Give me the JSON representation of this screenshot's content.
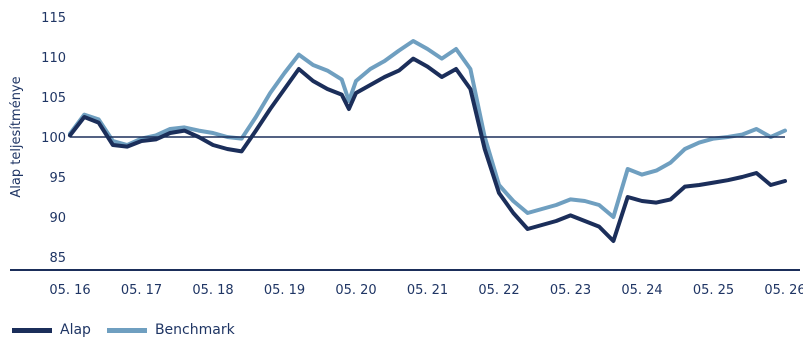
{
  "chart_data": {
    "type": "line",
    "ylabel": "Alap teljesítménye",
    "ylim": [
      83,
      116
    ],
    "yticks": [
      85,
      90,
      95,
      100,
      105,
      110,
      115
    ],
    "xticks": [
      "05. 16",
      "05. 17",
      "05. 18",
      "05. 19",
      "05. 20",
      "05. 21",
      "05. 22",
      "05. 23",
      "05. 24",
      "05. 25",
      "05. 26"
    ],
    "xlim": [
      0,
      10
    ],
    "reference_line": 100,
    "x": [
      0,
      0.2,
      0.4,
      0.6,
      0.8,
      1.0,
      1.2,
      1.4,
      1.6,
      1.8,
      2.0,
      2.2,
      2.4,
      2.6,
      2.8,
      3.0,
      3.2,
      3.4,
      3.6,
      3.8,
      3.9,
      4.0,
      4.2,
      4.4,
      4.6,
      4.8,
      5.0,
      5.2,
      5.4,
      5.6,
      5.8,
      6.0,
      6.2,
      6.4,
      6.6,
      6.8,
      7.0,
      7.2,
      7.4,
      7.6,
      7.8,
      8.0,
      8.2,
      8.4,
      8.6,
      8.8,
      9.0,
      9.2,
      9.4,
      9.6,
      9.8,
      10.0
    ],
    "series": [
      {
        "name": "Alap",
        "color": "#1b2e5a",
        "values": [
          100.2,
          102.5,
          101.8,
          99.0,
          98.8,
          99.5,
          99.7,
          100.5,
          100.8,
          100.0,
          99.0,
          98.5,
          98.2,
          100.8,
          103.5,
          106.0,
          108.5,
          107.0,
          106.0,
          105.3,
          103.5,
          105.5,
          106.5,
          107.5,
          108.3,
          109.8,
          108.8,
          107.5,
          108.5,
          106.0,
          98.5,
          93.0,
          90.5,
          88.5,
          89.0,
          89.5,
          90.2,
          89.5,
          88.8,
          87.0,
          92.5,
          92.0,
          91.8,
          92.2,
          93.8,
          94.0,
          94.3,
          94.6,
          95.0,
          95.5,
          94.0,
          94.5
        ]
      },
      {
        "name": "Benchmark",
        "color": "#6f9fc0",
        "values": [
          100.4,
          102.8,
          102.2,
          99.5,
          99.0,
          99.8,
          100.2,
          101.0,
          101.2,
          100.8,
          100.5,
          100.0,
          99.8,
          102.5,
          105.5,
          108.0,
          110.3,
          109.0,
          108.3,
          107.2,
          104.5,
          107.0,
          108.5,
          109.5,
          110.8,
          112.0,
          111.0,
          109.8,
          111.0,
          108.5,
          100.0,
          94.0,
          92.0,
          90.5,
          91.0,
          91.5,
          92.2,
          92.0,
          91.5,
          90.0,
          96.0,
          95.3,
          95.8,
          96.8,
          98.5,
          99.3,
          99.8,
          100.0,
          100.3,
          101.0,
          100.0,
          100.8
        ]
      }
    ]
  }
}
